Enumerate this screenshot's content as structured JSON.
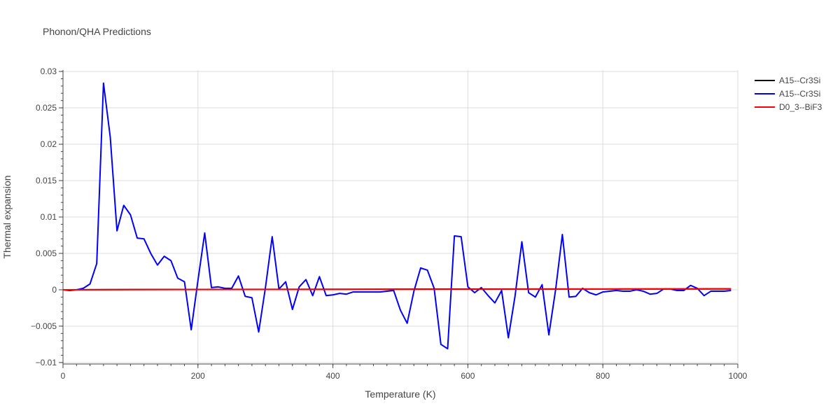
{
  "chart_data": {
    "type": "line",
    "title": "Phonon/QHA Predictions",
    "xlabel": "Temperature (K)",
    "ylabel": "Thermal expansion",
    "xlim": [
      0,
      1000
    ],
    "ylim": [
      -0.0102,
      0.0302
    ],
    "x_ticks": [
      0,
      200,
      400,
      600,
      800,
      1000
    ],
    "x_tick_labels": [
      "0",
      "200",
      "400",
      "600",
      "800",
      "1000"
    ],
    "y_ticks": [
      -0.01,
      -0.005,
      0,
      0.005,
      0.01,
      0.015,
      0.02,
      0.025,
      0.03
    ],
    "y_tick_labels": [
      "−0.01",
      "−0.005",
      "0",
      "0.005",
      "0.01",
      "0.015",
      "0.02",
      "0.025",
      "0.03"
    ],
    "grid": true,
    "legend_position": "top-right",
    "series": [
      {
        "name": "A15--Cr3Si",
        "color": "#000000",
        "x": [
          0,
          100,
          200,
          300,
          400,
          500,
          600,
          700,
          800,
          900,
          990
        ],
        "y": [
          0,
          3e-05,
          5e-05,
          6e-05,
          7e-05,
          8e-05,
          9e-05,
          0.0001,
          0.00011,
          0.00012,
          0.00013
        ]
      },
      {
        "name": "A15--Cr3Si",
        "color": "#0000ff",
        "x": [
          0,
          10,
          20,
          30,
          40,
          50,
          60,
          70,
          80,
          90,
          100,
          110,
          120,
          130,
          140,
          150,
          160,
          170,
          180,
          190,
          200,
          210,
          220,
          230,
          240,
          250,
          260,
          270,
          280,
          290,
          300,
          310,
          320,
          330,
          340,
          350,
          360,
          370,
          380,
          390,
          400,
          410,
          420,
          430,
          440,
          450,
          460,
          470,
          480,
          490,
          500,
          510,
          520,
          530,
          540,
          550,
          560,
          570,
          580,
          590,
          600,
          610,
          620,
          630,
          640,
          650,
          660,
          670,
          680,
          690,
          700,
          710,
          720,
          730,
          740,
          750,
          760,
          770,
          780,
          790,
          800,
          810,
          820,
          830,
          840,
          850,
          860,
          870,
          880,
          890,
          900,
          910,
          920,
          930,
          940,
          950,
          960,
          970,
          980,
          990
        ],
        "y": [
          0,
          -0.0001,
          0,
          0.0002,
          0.0008,
          0.0036,
          0.0284,
          0.021,
          0.0081,
          0.0116,
          0.0103,
          0.0071,
          0.007,
          0.005,
          0.0034,
          0.0046,
          0.004,
          0.0016,
          0.0011,
          -0.0055,
          0.0013,
          0.0078,
          0.0003,
          0.0004,
          0.0002,
          0.0002,
          0.0019,
          -0.0009,
          -0.0011,
          -0.0058,
          0.0003,
          0.0073,
          0.0001,
          0.0011,
          -0.0027,
          0.0004,
          0.0014,
          -0.0008,
          0.0018,
          -0.0008,
          -0.0007,
          -0.0005,
          -0.0006,
          -0.0003,
          -0.0003,
          -0.0003,
          -0.0003,
          -0.0003,
          -0.0002,
          -0.0001,
          -0.0028,
          -0.0046,
          -0.0002,
          0.003,
          0.0027,
          0.0002,
          -0.0075,
          -0.0081,
          0.0074,
          0.0073,
          0.0004,
          -0.0004,
          0.0003,
          -0.0008,
          -0.0018,
          -0.0001,
          -0.0066,
          -0.0008,
          0.0066,
          -0.0004,
          -0.001,
          0.0007,
          -0.0062,
          0.0,
          0.0076,
          -0.001,
          -0.0009,
          0.0002,
          -0.0004,
          -0.0007,
          -0.0003,
          -0.0002,
          -0.0001,
          -0.0002,
          -0.0002,
          0.0,
          -0.0002,
          -0.0006,
          -0.0005,
          0.0001,
          0.0001,
          -0.0001,
          -0.0001,
          0.0006,
          0.0002,
          -0.0008,
          -0.0002,
          -0.0002,
          -0.0002,
          -0.0001
        ]
      },
      {
        "name": "D0_3--BiF3",
        "color": "#ff0000",
        "x": [
          0,
          100,
          200,
          300,
          400,
          500,
          600,
          700,
          800,
          900,
          990
        ],
        "y": [
          0,
          2e-05,
          3e-05,
          4e-05,
          5e-05,
          6e-05,
          7e-05,
          8e-05,
          9e-05,
          0.0001,
          0.00011
        ]
      }
    ]
  }
}
